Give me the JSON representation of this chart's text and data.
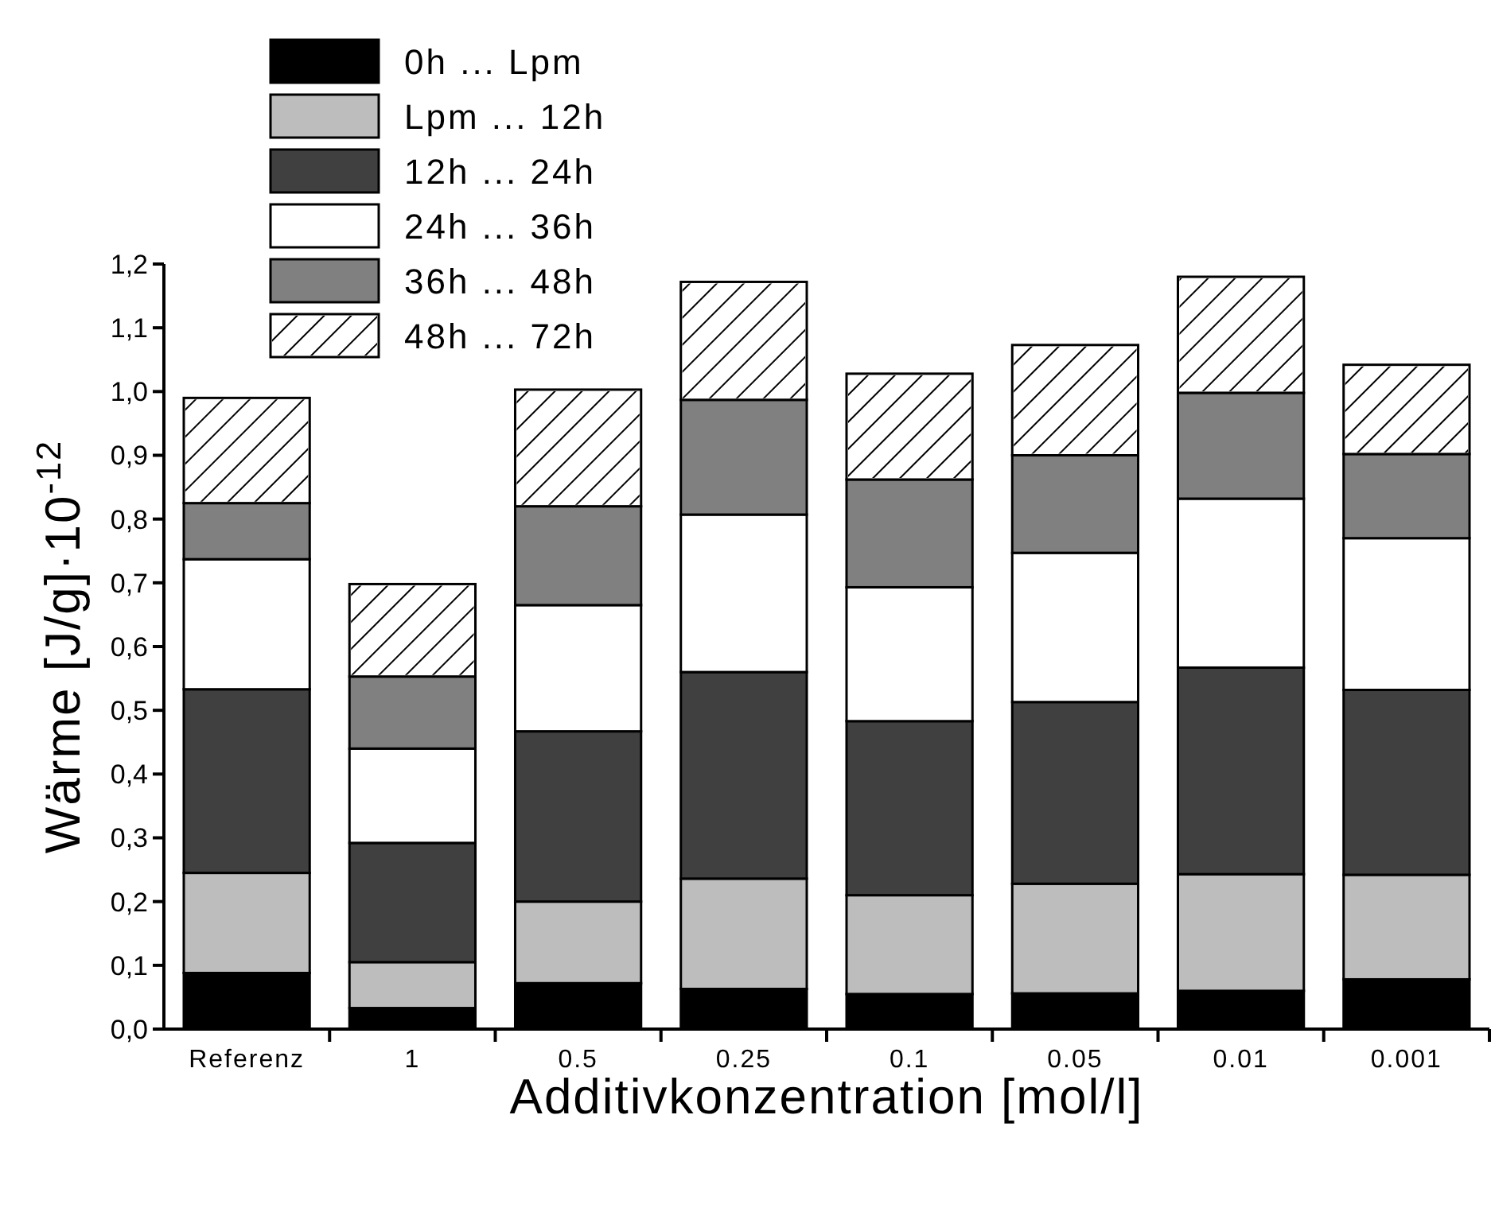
{
  "chart_data": {
    "type": "bar",
    "stacked": true,
    "xlabel": "Additivkonzentration [mol/l]",
    "ylabel": "Wärme [J/g]·10$^{-12}$",
    "categories": [
      "Referenz",
      "1",
      "0.5",
      "0.25",
      "0.1",
      "0.05",
      "0.01",
      "0.001"
    ],
    "ylim": [
      0,
      1.2
    ],
    "yticks": [
      {
        "value": 0,
        "label": "0,0"
      },
      {
        "value": 0.1,
        "label": "0,1"
      },
      {
        "value": 0.2,
        "label": "0,2"
      },
      {
        "value": 0.3,
        "label": "0,3"
      },
      {
        "value": 0.4,
        "label": "0,4"
      },
      {
        "value": 0.5,
        "label": "0,5"
      },
      {
        "value": 0.6,
        "label": "0,6"
      },
      {
        "value": 0.7,
        "label": "0,7"
      },
      {
        "value": 0.8,
        "label": "0,8"
      },
      {
        "value": 0.9,
        "label": "0,9"
      },
      {
        "value": 1.0,
        "label": "1,0"
      },
      {
        "value": 1.1,
        "label": "1,1"
      },
      {
        "value": 1.2,
        "label": "1,2"
      }
    ],
    "legend": "top left",
    "grid": false,
    "series": [
      {
        "name": "0h ... Lpm",
        "color": "#000000",
        "values": [
          0.088,
          0.033,
          0.072,
          0.063,
          0.055,
          0.056,
          0.06,
          0.078
        ]
      },
      {
        "name": "Lpm ... 12h",
        "color": "#bdbdbd",
        "values": [
          0.157,
          0.072,
          0.128,
          0.173,
          0.155,
          0.172,
          0.183,
          0.164
        ]
      },
      {
        "name": "12h ... 24h",
        "color": "#404040",
        "values": [
          0.288,
          0.187,
          0.267,
          0.324,
          0.273,
          0.285,
          0.324,
          0.29
        ]
      },
      {
        "name": "24h ... 36h",
        "color": "#ffffff",
        "values": [
          0.204,
          0.148,
          0.198,
          0.247,
          0.21,
          0.234,
          0.265,
          0.238
        ]
      },
      {
        "name": "36h ... 48h",
        "color": "#808080",
        "values": [
          0.088,
          0.113,
          0.155,
          0.18,
          0.169,
          0.153,
          0.166,
          0.132
        ]
      },
      {
        "name": "48h ... 72h",
        "color": "#ffffff",
        "values": [
          0.165,
          0.145,
          0.183,
          0.185,
          0.166,
          0.173,
          0.182,
          0.14
        ]
      }
    ]
  }
}
